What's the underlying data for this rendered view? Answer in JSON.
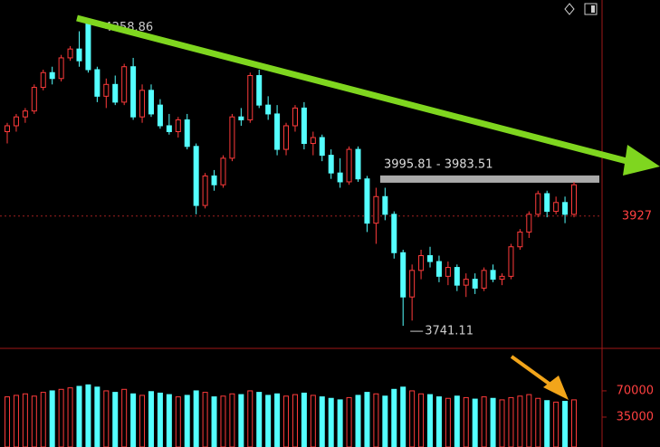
{
  "chart_data": {
    "type": "candlestick",
    "open": [
      4070,
      4080,
      4095,
      4105,
      4145,
      4170,
      4160,
      4195,
      4210,
      4255,
      4175,
      4130,
      4150,
      4120,
      4180,
      4095,
      4140,
      4115,
      4080,
      4070,
      4090,
      4045,
      3945,
      3995,
      3980,
      4025,
      4095,
      4090,
      4165,
      4115,
      4100,
      4040,
      4080,
      4110,
      4050,
      4060,
      4030,
      4000,
      3985,
      4040,
      3990,
      3915,
      3960,
      3930,
      3865,
      3790,
      3835,
      3860,
      3850,
      3825,
      3840,
      3810,
      3820,
      3805,
      3835,
      3820,
      3825,
      3875,
      3900,
      3930,
      3965,
      3935,
      3950,
      3930
    ],
    "high": [
      4085,
      4100,
      4110,
      4150,
      4175,
      4180,
      4200,
      4215,
      4240,
      4258.86,
      4180,
      4160,
      4165,
      4185,
      4195,
      4150,
      4150,
      4125,
      4100,
      4095,
      4100,
      4050,
      4000,
      4005,
      4030,
      4100,
      4110,
      4170,
      4175,
      4130,
      4115,
      4085,
      4115,
      4120,
      4070,
      4065,
      4040,
      4025,
      4045,
      4045,
      3995,
      3975,
      3975,
      3935,
      3870,
      3845,
      3870,
      3875,
      3860,
      3850,
      3845,
      3830,
      3830,
      3840,
      3845,
      3830,
      3880,
      3905,
      3935,
      3970,
      3970,
      3960,
      3960,
      3985
    ],
    "low": [
      4050,
      4070,
      4085,
      4100,
      4140,
      4150,
      4155,
      4190,
      4180,
      4170,
      4120,
      4110,
      4115,
      4115,
      4090,
      4085,
      4095,
      4075,
      4065,
      4060,
      4040,
      3930,
      3940,
      3970,
      3975,
      4020,
      4080,
      4085,
      4110,
      4090,
      4030,
      4030,
      4070,
      4040,
      4030,
      4020,
      3990,
      3975,
      3980,
      3985,
      3900,
      3880,
      3920,
      3855,
      3741.11,
      3750,
      3820,
      3840,
      3815,
      3810,
      3800,
      3790,
      3795,
      3800,
      3815,
      3810,
      3820,
      3870,
      3890,
      3925,
      3925,
      3930,
      3915,
      3925
    ],
    "close": [
      4080,
      4095,
      4105,
      4145,
      4170,
      4160,
      4195,
      4210,
      4190,
      4175,
      4130,
      4150,
      4120,
      4180,
      4095,
      4140,
      4100,
      4080,
      4070,
      4090,
      4045,
      3945,
      3995,
      3980,
      4025,
      4095,
      4090,
      4165,
      4115,
      4100,
      4040,
      4080,
      4110,
      4050,
      4060,
      4030,
      4000,
      3985,
      4040,
      3990,
      3915,
      3960,
      3930,
      3865,
      3790,
      3835,
      3860,
      3850,
      3825,
      3840,
      3810,
      3820,
      3805,
      3835,
      3820,
      3825,
      3875,
      3900,
      3930,
      3965,
      3935,
      3950,
      3930,
      3980
    ],
    "volume": [
      62000,
      64000,
      66000,
      63000,
      68000,
      70000,
      72000,
      74000,
      76000,
      78000,
      75000,
      70000,
      68000,
      72000,
      66000,
      64000,
      69000,
      67000,
      65000,
      62000,
      64000,
      70000,
      68000,
      62000,
      63000,
      66000,
      65000,
      70000,
      68000,
      64000,
      66000,
      63000,
      65000,
      67000,
      64000,
      62000,
      60000,
      58000,
      61000,
      64000,
      68000,
      66000,
      63000,
      72000,
      75000,
      70000,
      66000,
      65000,
      62000,
      60000,
      63000,
      61000,
      59000,
      62000,
      60000,
      58000,
      61000,
      63000,
      65000,
      60000,
      57000,
      55000,
      56000,
      58000
    ],
    "up_color": "#ff3b3b",
    "down_color": "#54ffff",
    "ylim": [
      3706,
      4293
    ],
    "yticks": [
      3927
    ],
    "y2lim": [
      0,
      123000
    ],
    "y2ticks": [
      70000,
      35000
    ],
    "band": {
      "label": "3995.81 - 3983.51",
      "values": [
        3995.81,
        3983.51
      ]
    }
  }
}
